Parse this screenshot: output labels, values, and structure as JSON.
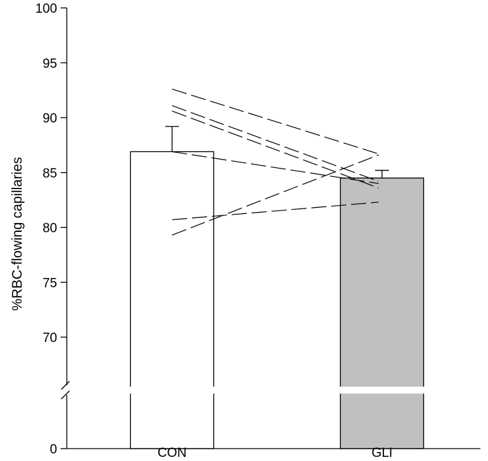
{
  "chart_data": {
    "type": "bar",
    "title": "",
    "xlabel": "",
    "ylabel": "%RBC-flowing capillaries",
    "categories": [
      "CON",
      "GLI"
    ],
    "values": [
      86.9,
      84.5
    ],
    "error_upper": [
      89.2,
      85.2
    ],
    "bar_colors": [
      "#ffffff",
      "#c0c0c0"
    ],
    "ylim": [
      0,
      100
    ],
    "axis_break": [
      0,
      66
    ],
    "y_ticks": [
      0,
      70,
      75,
      80,
      85,
      90,
      95,
      100
    ],
    "y_tick_labels": [
      "0",
      "70",
      "75",
      "80",
      "85",
      "90",
      "95",
      "100"
    ],
    "grid": false,
    "paired_lines": [
      {
        "con": 92.6,
        "gli": 86.7
      },
      {
        "con": 91.1,
        "gli": 84.2
      },
      {
        "con": 90.6,
        "gli": 83.6
      },
      {
        "con": 86.9,
        "gli": 84.0
      },
      {
        "con": 80.7,
        "gli": 82.3
      },
      {
        "con": 79.3,
        "gli": 86.6
      }
    ]
  }
}
